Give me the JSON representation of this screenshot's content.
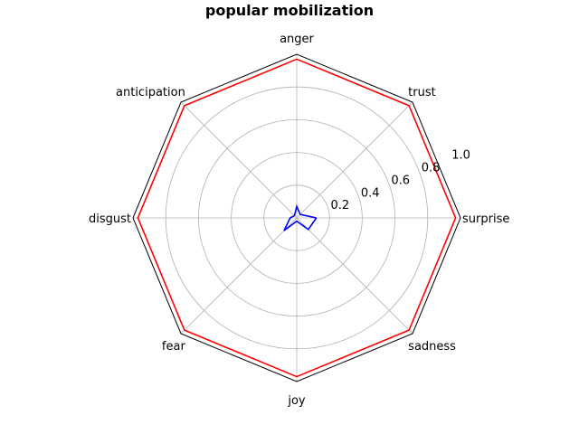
{
  "chart_data": {
    "type": "radar",
    "title": "popular mobilization",
    "categories": [
      "surprise",
      "trust",
      "anger",
      "anticipation",
      "disgust",
      "fear",
      "joy",
      "sadness"
    ],
    "rlim": [
      0,
      1.0
    ],
    "rticks": [
      0.2,
      0.4,
      0.6,
      0.8,
      1.0
    ],
    "rtick_labels": [
      "0.2",
      "0.4",
      "0.6",
      "0.8",
      "1.0"
    ],
    "grid": true,
    "series": [
      {
        "color": "#ff0000",
        "values": [
          0.97,
          0.97,
          0.97,
          0.97,
          0.97,
          0.97,
          0.97,
          0.97
        ]
      },
      {
        "color": "#0000ff",
        "values": [
          0.12,
          0.03,
          0.07,
          0.02,
          0.04,
          0.11,
          0.02,
          0.1
        ]
      }
    ]
  }
}
